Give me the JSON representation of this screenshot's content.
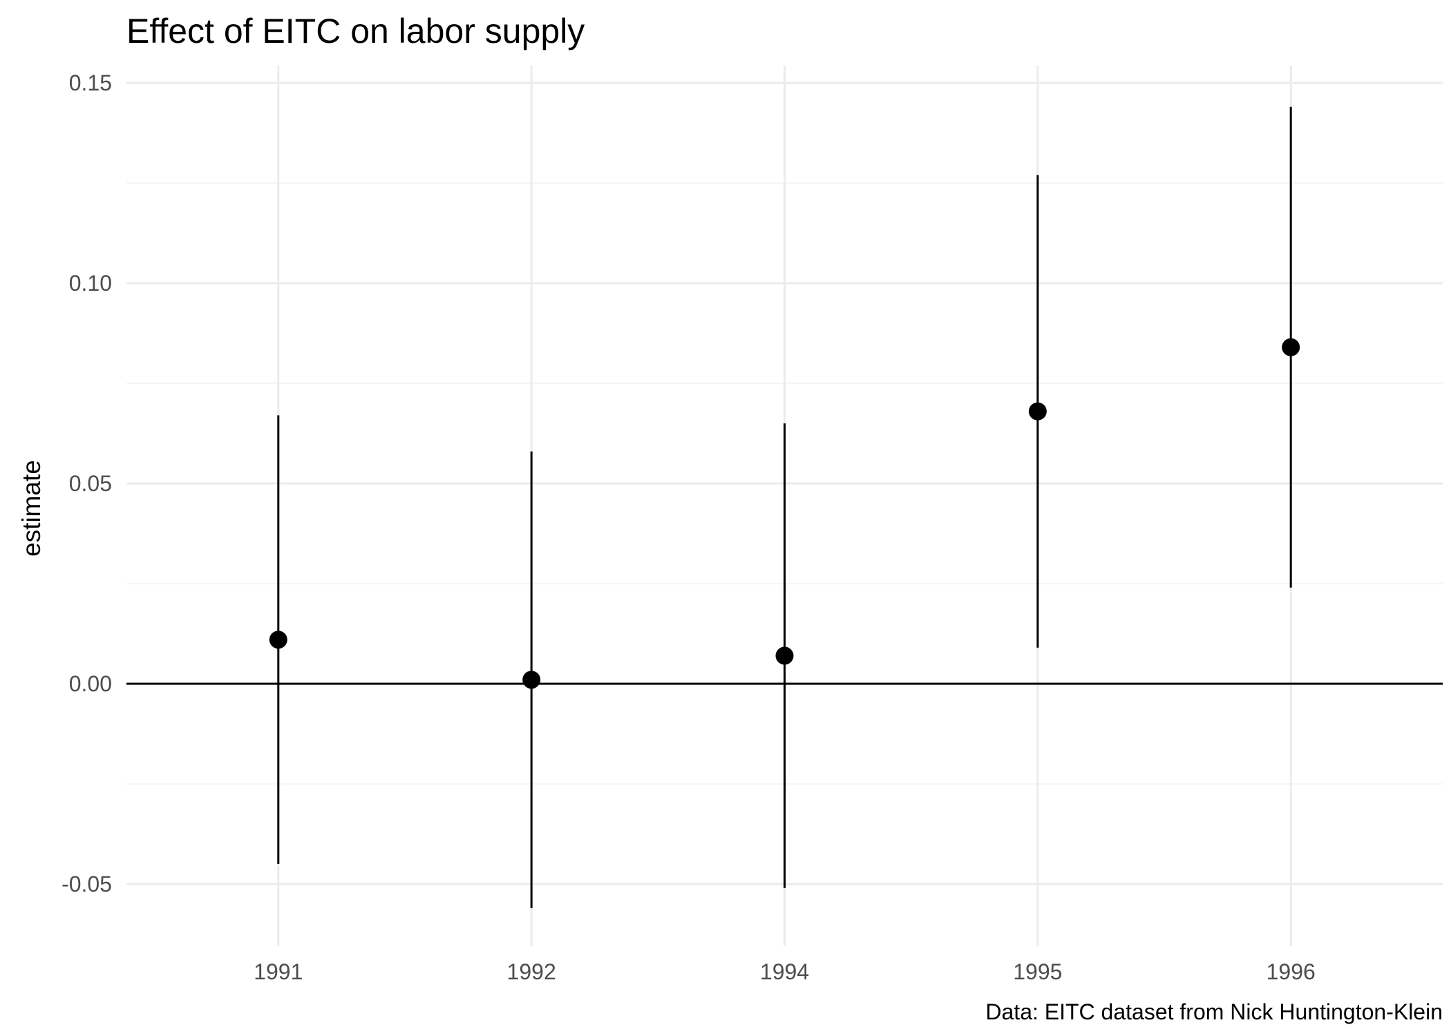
{
  "chart_data": {
    "type": "scatter",
    "title": "Effect of EITC on labor supply",
    "xlabel": "",
    "ylabel": "estimate",
    "caption": "Data: EITC dataset from Nick Huntington-Klein",
    "categories": [
      "1991",
      "1992",
      "1994",
      "1995",
      "1996"
    ],
    "estimate": [
      0.011,
      0.001,
      0.007,
      0.068,
      0.084
    ],
    "conf_low": [
      -0.045,
      -0.056,
      -0.051,
      0.009,
      0.024
    ],
    "conf_high": [
      0.067,
      0.058,
      0.065,
      0.127,
      0.144
    ],
    "y_ticks": [
      -0.05,
      0.0,
      0.05,
      0.1,
      0.15
    ],
    "y_tick_labels": [
      "-0.05",
      "0.00",
      "0.05",
      "0.10",
      "0.15"
    ],
    "ylim": [
      -0.065,
      0.155
    ],
    "reference_line_y": 0,
    "grid": true,
    "legend": "none",
    "point_color": "#000000",
    "grid_color": "#ebebeb"
  }
}
